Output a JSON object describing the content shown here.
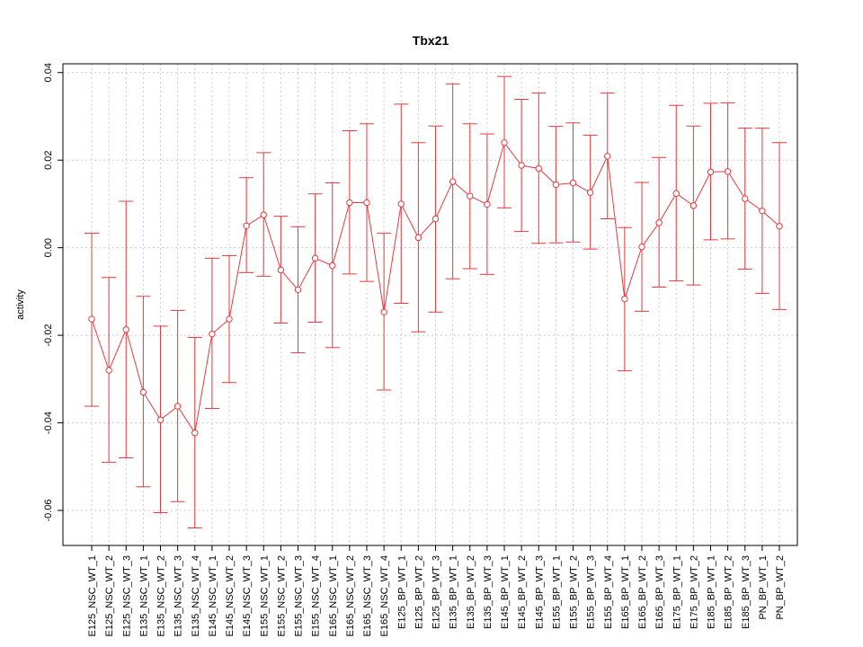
{
  "chart_data": {
    "type": "line",
    "title": "Tbx21",
    "xlabel": "",
    "ylabel": "activity",
    "ylim": [
      -0.068,
      0.042
    ],
    "yticks": [
      -0.06,
      -0.04,
      -0.02,
      0.0,
      0.02,
      0.04
    ],
    "ytick_labels": [
      "-0.06",
      "-0.04",
      "-0.02",
      "0.00",
      "0.02",
      "0.04"
    ],
    "grid": true,
    "legend": "none",
    "colors": {
      "series": "#e8383d",
      "grid": "#cccccc",
      "axis": "#000000"
    },
    "categories": [
      "E125_NSC_WT_1",
      "E125_NSC_WT_2",
      "E125_NSC_WT_3",
      "E135_NSC_WT_1",
      "E135_NSC_WT_2",
      "E135_NSC_WT_3",
      "E135_NSC_WT_4",
      "E145_NSC_WT_1",
      "E145_NSC_WT_2",
      "E145_NSC_WT_3",
      "E155_NSC_WT_1",
      "E155_NSC_WT_2",
      "E155_NSC_WT_3",
      "E155_NSC_WT_4",
      "E165_NSC_WT_1",
      "E165_NSC_WT_2",
      "E165_NSC_WT_3",
      "E165_NSC_WT_4",
      "E125_BP_WT_1",
      "E125_BP_WT_2",
      "E125_BP_WT_3",
      "E135_BP_WT_1",
      "E135_BP_WT_2",
      "E135_BP_WT_3",
      "E145_BP_WT_1",
      "E145_BP_WT_2",
      "E145_BP_WT_3",
      "E155_BP_WT_1",
      "E155_BP_WT_2",
      "E155_BP_WT_3",
      "E155_BP_WT_4",
      "E165_BP_WT_1",
      "E165_BP_WT_2",
      "E165_BP_WT_3",
      "E175_BP_WT_1",
      "E175_BP_WT_2",
      "E185_BP_WT_1",
      "E185_BP_WT_2",
      "E185_BP_WT_3",
      "PN_BP_WT_1",
      "PN_BP_WT_2"
    ],
    "series": [
      {
        "values": [
          -0.0163,
          -0.028,
          -0.0187,
          -0.033,
          -0.0393,
          -0.0362,
          -0.0423,
          -0.0197,
          -0.0163,
          0.005,
          0.0075,
          -0.0051,
          -0.0096,
          -0.0024,
          -0.0041,
          0.0103,
          0.0103,
          -0.0147,
          0.01,
          0.0023,
          0.0066,
          0.0151,
          0.0118,
          0.0099,
          0.024,
          0.0188,
          0.0181,
          0.0144,
          0.0148,
          0.0126,
          0.0209,
          -0.0117,
          0.0002,
          0.0057,
          0.0124,
          0.0096,
          0.0173,
          0.0174,
          0.0112,
          0.0084,
          0.0049
        ],
        "lower": [
          -0.0362,
          -0.049,
          -0.048,
          -0.0546,
          -0.0605,
          -0.058,
          -0.064,
          -0.0367,
          -0.0308,
          -0.0057,
          -0.0065,
          -0.0172,
          -0.024,
          -0.017,
          -0.0228,
          -0.006,
          -0.0077,
          -0.0325,
          -0.0127,
          -0.0192,
          -0.0147,
          -0.0071,
          -0.0048,
          -0.0061,
          0.0091,
          0.0037,
          0.001,
          0.0011,
          0.0013,
          -0.0003,
          0.0066,
          -0.0281,
          -0.0145,
          -0.009,
          -0.0076,
          -0.0085,
          0.0018,
          0.002,
          -0.0049,
          -0.0104,
          -0.0141
        ],
        "upper": [
          0.0033,
          -0.0068,
          0.0106,
          -0.0111,
          -0.0179,
          -0.0143,
          -0.0205,
          -0.0024,
          -0.0018,
          0.016,
          0.0217,
          0.0072,
          0.0048,
          0.0123,
          0.0148,
          0.0267,
          0.0283,
          0.0033,
          0.0328,
          0.024,
          0.0278,
          0.0374,
          0.0283,
          0.026,
          0.0391,
          0.0339,
          0.0353,
          0.0277,
          0.0285,
          0.0257,
          0.0353,
          0.0046,
          0.0149,
          0.0206,
          0.0325,
          0.0278,
          0.033,
          0.0331,
          0.0273,
          0.0273,
          0.024
        ]
      }
    ]
  }
}
